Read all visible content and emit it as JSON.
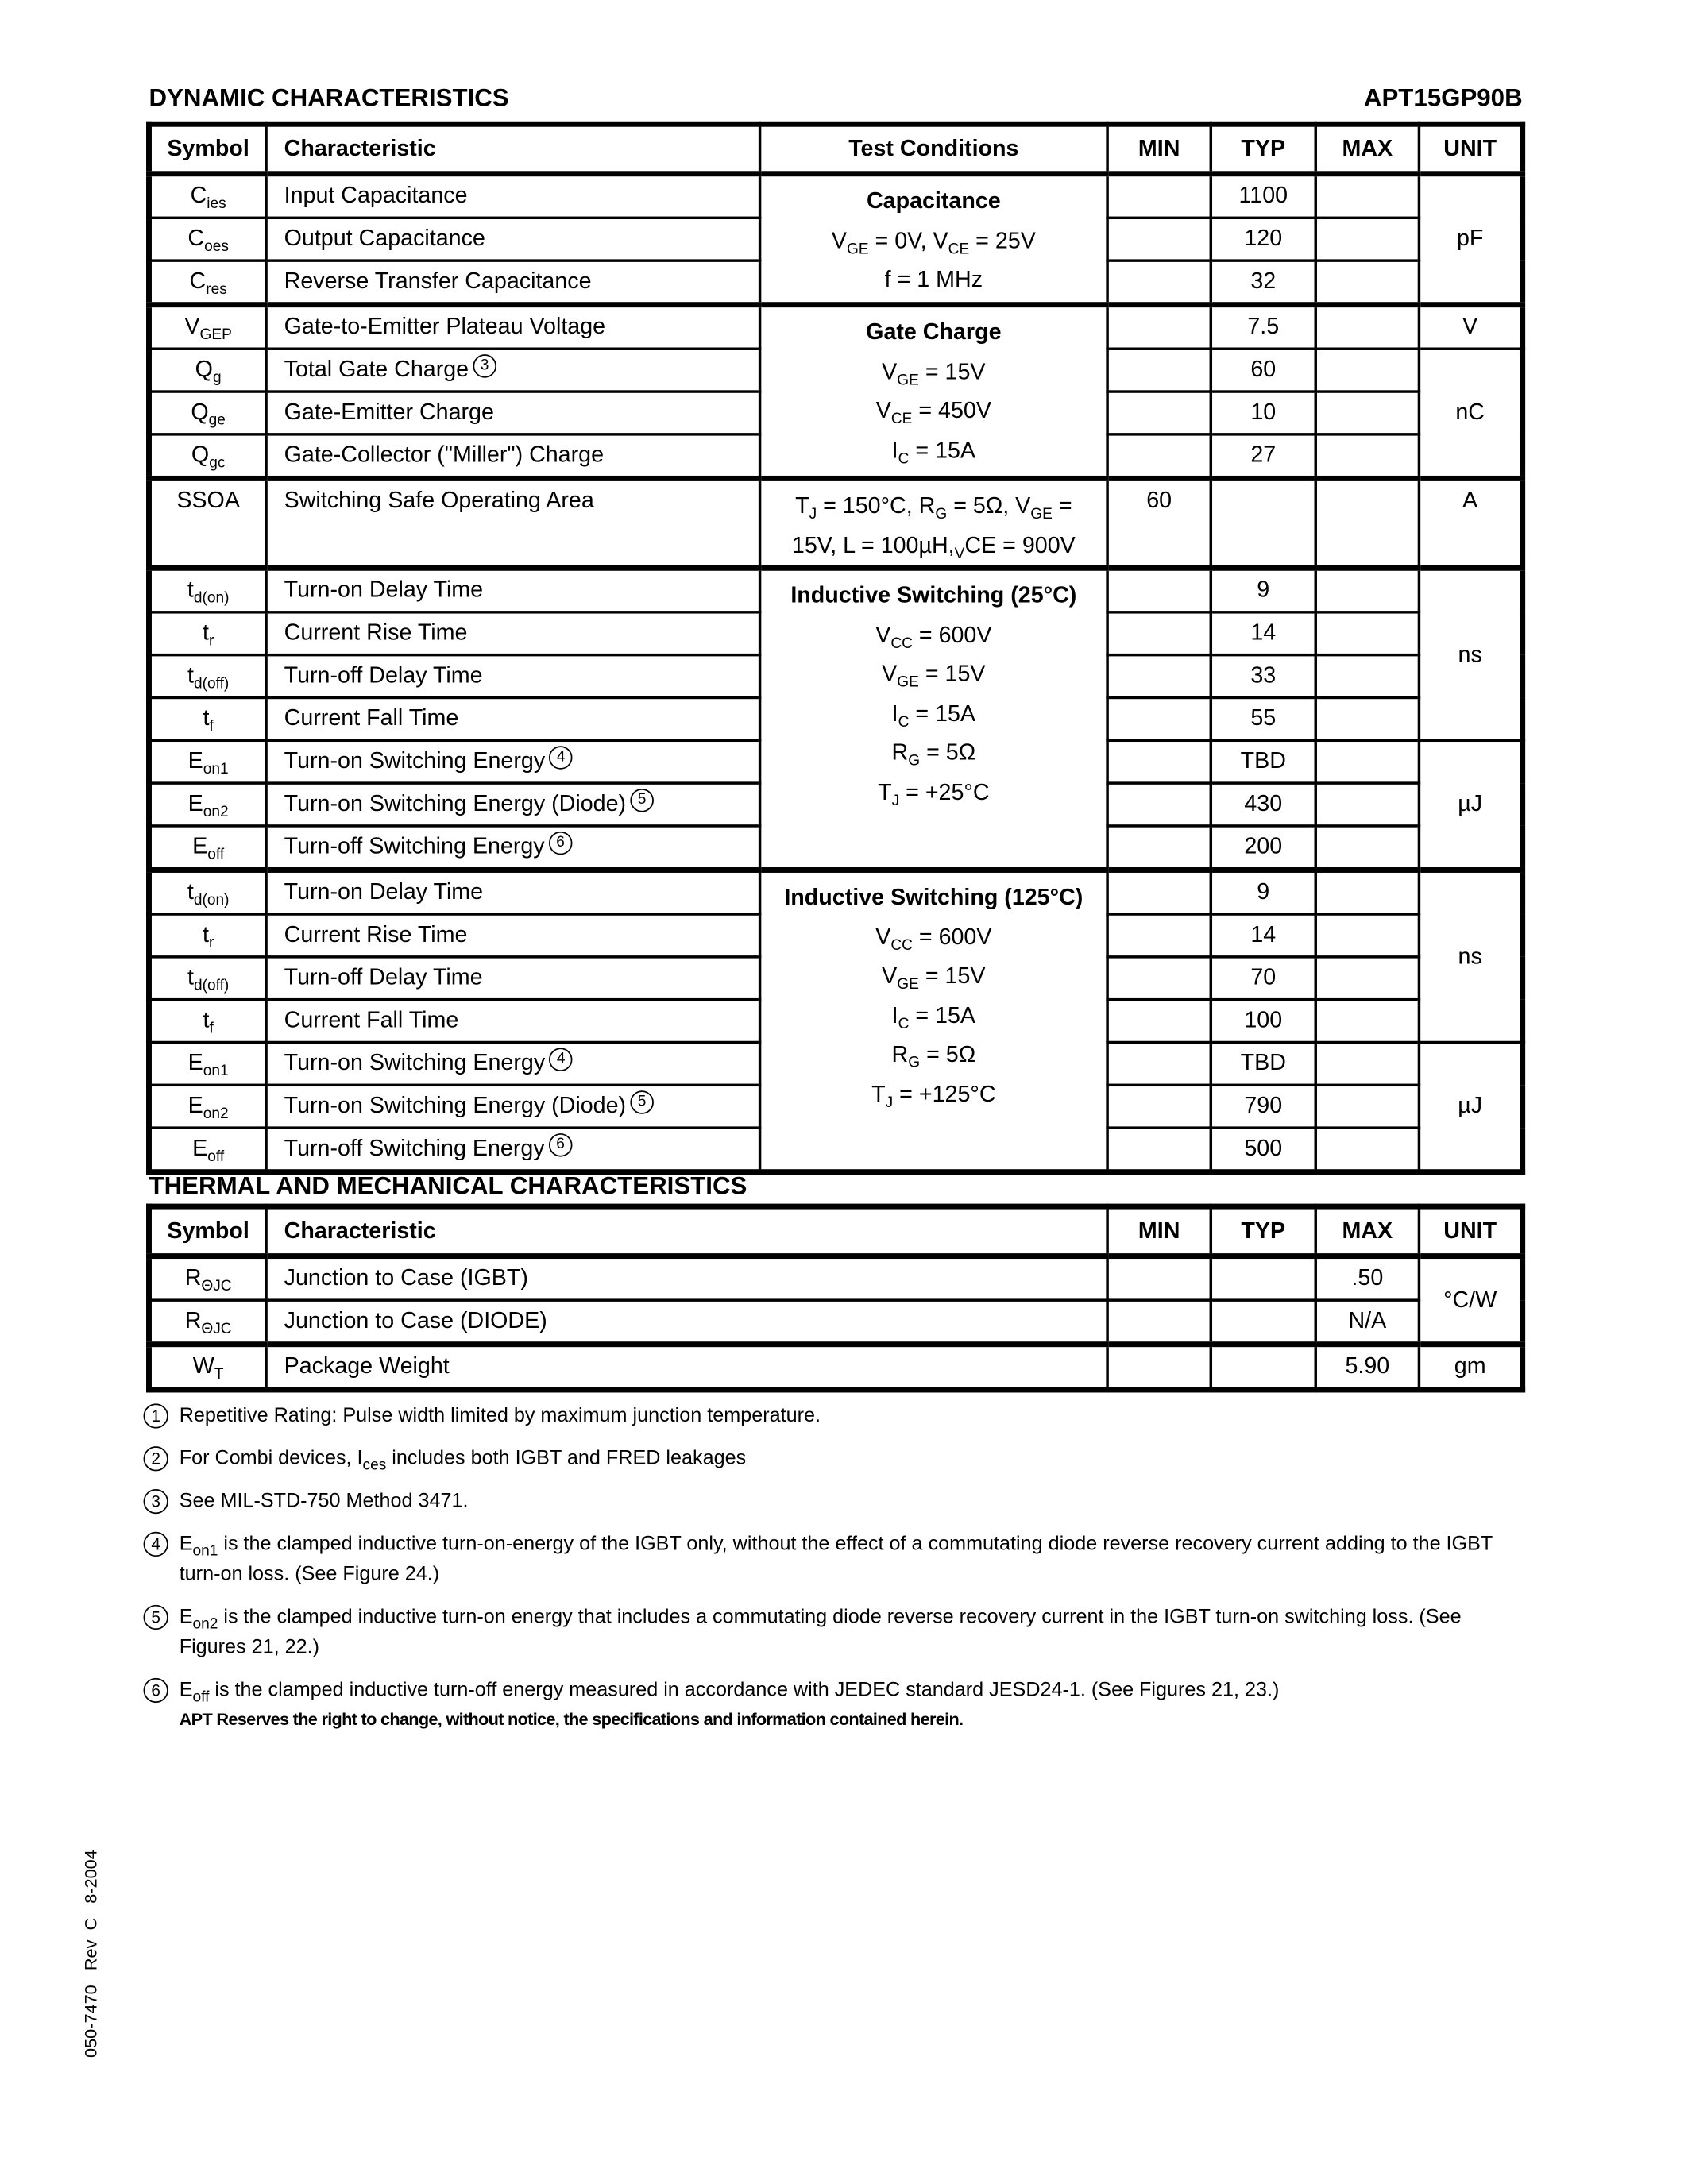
{
  "part_number": "APT15GP90B",
  "dynamic": {
    "title": "DYNAMIC CHARACTERISTICS",
    "headers": [
      "Symbol",
      "Characteristic",
      "Test Conditions",
      "MIN",
      "TYP",
      "MAX",
      "UNIT"
    ],
    "rows": [
      {
        "sym": "C",
        "sub": "ies",
        "char": "Input Capacitance",
        "note": "",
        "min": "",
        "typ": "1100",
        "max": ""
      },
      {
        "sym": "C",
        "sub": "oes",
        "char": "Output Capacitance",
        "note": "",
        "min": "",
        "typ": "120",
        "max": ""
      },
      {
        "sym": "C",
        "sub": "res",
        "char": "Reverse Transfer Capacitance",
        "note": "",
        "min": "",
        "typ": "32",
        "max": ""
      },
      {
        "sym": "V",
        "sub": "GEP",
        "char": "Gate-to-Emitter Plateau Voltage",
        "note": "",
        "min": "",
        "typ": "7.5",
        "max": ""
      },
      {
        "sym": "Q",
        "sub": "g",
        "char": "Total Gate Charge",
        "note": "3",
        "min": "",
        "typ": "60",
        "max": ""
      },
      {
        "sym": "Q",
        "sub": "ge",
        "char": "Gate-Emitter Charge",
        "note": "",
        "min": "",
        "typ": "10",
        "max": ""
      },
      {
        "sym": "Q",
        "sub": "gc",
        "char": "Gate-Collector (\"Miller\") Charge",
        "note": "",
        "min": "",
        "typ": "27",
        "max": ""
      },
      {
        "sym": "SSOA",
        "sub": "",
        "char": "Switching Safe Operating Area",
        "note": "",
        "min": "60",
        "typ": "",
        "max": ""
      },
      {
        "sym": "t",
        "sub": "d(on)",
        "char": "Turn-on Delay Time",
        "note": "",
        "min": "",
        "typ": "9",
        "max": ""
      },
      {
        "sym": "t",
        "sub": "r",
        "char": "Current Rise Time",
        "note": "",
        "min": "",
        "typ": "14",
        "max": ""
      },
      {
        "sym": "t",
        "sub": "d(off)",
        "char": "Turn-off Delay Time",
        "note": "",
        "min": "",
        "typ": "33",
        "max": ""
      },
      {
        "sym": "t",
        "sub": "f",
        "char": "Current Fall Time",
        "note": "",
        "min": "",
        "typ": "55",
        "max": ""
      },
      {
        "sym": "E",
        "sub": "on1",
        "char": "Turn-on Switching Energy",
        "note": "4",
        "min": "",
        "typ": "TBD",
        "max": ""
      },
      {
        "sym": "E",
        "sub": "on2",
        "char": "Turn-on Switching Energy (Diode)",
        "note": "5",
        "min": "",
        "typ": "430",
        "max": ""
      },
      {
        "sym": "E",
        "sub": "off",
        "char": "Turn-off Switching Energy",
        "note": "6",
        "min": "",
        "typ": "200",
        "max": ""
      },
      {
        "sym": "t",
        "sub": "d(on)",
        "char": "Turn-on Delay Time",
        "note": "",
        "min": "",
        "typ": "9",
        "max": ""
      },
      {
        "sym": "t",
        "sub": "r",
        "char": "Current Rise Time",
        "note": "",
        "min": "",
        "typ": "14",
        "max": ""
      },
      {
        "sym": "t",
        "sub": "d(off)",
        "char": "Turn-off Delay Time",
        "note": "",
        "min": "",
        "typ": "70",
        "max": ""
      },
      {
        "sym": "t",
        "sub": "f",
        "char": "Current Fall Time",
        "note": "",
        "min": "",
        "typ": "100",
        "max": ""
      },
      {
        "sym": "E",
        "sub": "on1",
        "char": "Turn-on Switching Energy",
        "note": "4",
        "min": "",
        "typ": "TBD",
        "max": ""
      },
      {
        "sym": "E",
        "sub": "on2",
        "char": "Turn-on Switching Energy (Diode)",
        "note": "5",
        "min": "",
        "typ": "790",
        "max": ""
      },
      {
        "sym": "E",
        "sub": "off",
        "char": "Turn-off Switching Energy",
        "note": "6",
        "min": "",
        "typ": "500",
        "max": ""
      }
    ],
    "conditions": [
      {
        "start": 0,
        "span": 3,
        "title": "Capacitance",
        "lines": [
          [
            "V",
            "GE",
            " = 0V,  ",
            "V",
            "CE",
            " = 25V"
          ],
          [
            "f = 1 MHz"
          ]
        ]
      },
      {
        "start": 3,
        "span": 4,
        "title": "Gate Charge",
        "lines": [
          [
            "V",
            "GE",
            " = 15V"
          ],
          [
            "V",
            "CE",
            " = 450V"
          ],
          [
            "I",
            "C",
            " = 15A"
          ]
        ]
      },
      {
        "start": 7,
        "span": 1,
        "title": "",
        "lines": [
          [
            "T",
            "J",
            " = 150°C, ",
            "R",
            "G",
            " = 5Ω, ",
            "V",
            "GE",
            " ="
          ],
          [
            "15V,  L = 100µH,",
            "V",
            "CE",
            " = 900V"
          ]
        ]
      },
      {
        "start": 8,
        "span": 7,
        "title": "Inductive Switching (25°C)",
        "lines": [
          [
            "V",
            "CC",
            " = 600V"
          ],
          [
            "V",
            "GE",
            " = 15V"
          ],
          [
            "I",
            "C",
            " = 15A"
          ],
          [
            "R",
            "G",
            " = 5Ω"
          ],
          [
            "T",
            "J",
            " = +25°C"
          ]
        ]
      },
      {
        "start": 15,
        "span": 7,
        "title": "Inductive Switching (125°C)",
        "lines": [
          [
            "V",
            "CC",
            " = 600V"
          ],
          [
            "V",
            "GE",
            " = 15V"
          ],
          [
            "I",
            "C",
            " = 15A"
          ],
          [
            "R",
            "G",
            " = 5Ω"
          ],
          [
            "T",
            "J",
            " = +125°C"
          ]
        ]
      }
    ],
    "units": [
      {
        "start": 0,
        "span": 3,
        "unit": "pF"
      },
      {
        "start": 3,
        "span": 1,
        "unit": "V"
      },
      {
        "start": 4,
        "span": 3,
        "unit": "nC"
      },
      {
        "start": 7,
        "span": 1,
        "unit": "A"
      },
      {
        "start": 8,
        "span": 4,
        "unit": "ns"
      },
      {
        "start": 12,
        "span": 3,
        "unit": "µJ"
      },
      {
        "start": 15,
        "span": 4,
        "unit": "ns"
      },
      {
        "start": 19,
        "span": 3,
        "unit": "µJ"
      }
    ]
  },
  "thermal": {
    "title": "THERMAL AND MECHANICAL CHARACTERISTICS",
    "headers": [
      "Symbol",
      "Characteristic",
      "MIN",
      "TYP",
      "MAX",
      "UNIT"
    ],
    "rows": [
      {
        "sym": "R",
        "sub": "ΘJC",
        "char": "Junction to Case (IGBT)",
        "min": "",
        "typ": "",
        "max": ".50"
      },
      {
        "sym": "R",
        "sub": "ΘJC",
        "char": "Junction to Case (DIODE)",
        "min": "",
        "typ": "",
        "max": "N/A"
      },
      {
        "sym": "W",
        "sub": "T",
        "char": "Package Weight",
        "min": "",
        "typ": "",
        "max": "5.90"
      }
    ],
    "units": [
      {
        "start": 0,
        "span": 2,
        "unit": "°C/W"
      },
      {
        "start": 2,
        "span": 1,
        "unit": "gm"
      }
    ]
  },
  "notes": [
    {
      "n": "1",
      "parts": [
        "Repetitive Rating: Pulse width limited by maximum junction temperature."
      ]
    },
    {
      "n": "2",
      "parts": [
        "For Combi devices, I",
        "ces",
        " includes both IGBT and FRED leakages"
      ]
    },
    {
      "n": "3",
      "parts": [
        "See MIL-STD-750 Method 3471."
      ]
    },
    {
      "n": "4",
      "parts": [
        "E",
        "on1",
        " is the clamped inductive turn-on-energy of the IGBT only, without the effect of a commutating diode reverse recovery current adding to the IGBT turn-on loss. (See Figure 24.)"
      ]
    },
    {
      "n": "5",
      "parts": [
        "E",
        "on2",
        " is the clamped inductive turn-on energy that includes a commutating diode reverse recovery current in the IGBT turn-on switching loss. (See Figures 21, 22.)"
      ]
    },
    {
      "n": "6",
      "parts": [
        "E",
        "off",
        " is the clamped inductive turn-off energy measured in accordance with JEDEC standard JESD24-1.  (See Figures 21, 23.)"
      ]
    }
  ],
  "disclaimer": "APT Reserves the right to change, without notice, the specifications and information contained herein.",
  "side_text": "050-7470   Rev  C   8-2004"
}
